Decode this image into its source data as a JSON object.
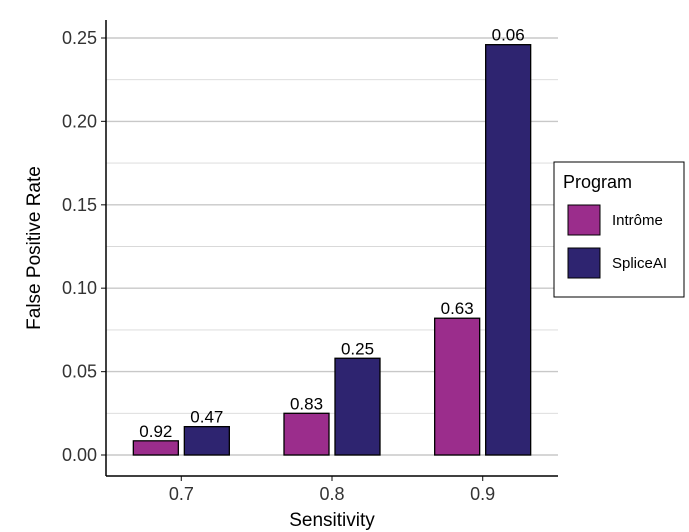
{
  "chart_data": {
    "type": "bar",
    "xlabel": "Sensitivity",
    "ylabel": "False Positive Rate",
    "categories": [
      "0.7",
      "0.8",
      "0.9"
    ],
    "ylim": [
      0,
      0.25
    ],
    "yticks": [
      "0.00",
      "0.05",
      "0.10",
      "0.15",
      "0.20",
      "0.25"
    ],
    "grid": true,
    "legend_title": "Program",
    "legend_position": "right",
    "series": [
      {
        "name": "Intrôme",
        "color": "#9B2D8C",
        "values": [
          0.0085,
          0.025,
          0.082
        ],
        "labels": [
          "0.92",
          "0.83",
          "0.63"
        ]
      },
      {
        "name": "SpliceAI",
        "color": "#2E2470",
        "values": [
          0.017,
          0.058,
          0.246
        ],
        "labels": [
          "0.47",
          "0.25",
          "0.06"
        ]
      }
    ]
  }
}
